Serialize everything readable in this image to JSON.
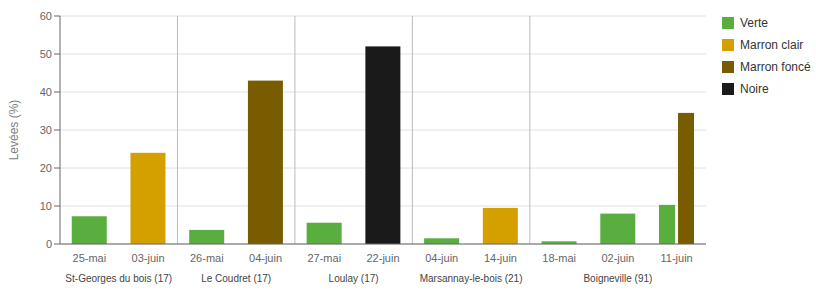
{
  "chart_data": {
    "type": "bar",
    "categories": [
      "25-mai",
      "03-juin",
      "26-mai",
      "04-juin",
      "27-mai",
      "22-juin",
      "04-juin",
      "14-juin",
      "18-mai",
      "02-juin",
      "11-juin"
    ],
    "series": [
      {
        "name": "Verte",
        "color": "#5aad3f",
        "values": [
          7.3,
          null,
          3.7,
          null,
          5.6,
          null,
          1.5,
          null,
          0.7,
          8.0,
          10.3
        ]
      },
      {
        "name": "Marron clair",
        "color": "#d4a000",
        "values": [
          null,
          24.0,
          null,
          null,
          null,
          null,
          null,
          9.5,
          null,
          null,
          null
        ]
      },
      {
        "name": "Marron foncé",
        "color": "#7a5c00",
        "values": [
          null,
          null,
          null,
          43.0,
          null,
          null,
          null,
          null,
          null,
          null,
          34.5
        ]
      },
      {
        "name": "Noire",
        "color": "#1a1a1a",
        "values": [
          null,
          null,
          null,
          null,
          null,
          52.0,
          null,
          null,
          null,
          null,
          null
        ]
      }
    ],
    "ylabel": "Levées (%)",
    "ylim": [
      0,
      60
    ],
    "yticks": [
      0,
      10,
      20,
      30,
      40,
      50,
      60
    ],
    "grid": true,
    "legend": "right",
    "annotations": [
      {
        "text": "St-Georges du bois (17)",
        "positions": [
          0,
          1
        ]
      },
      {
        "text": "Le Coudret (17)",
        "positions": [
          2,
          3
        ]
      },
      {
        "text": "Loulay (17)",
        "positions": [
          4,
          5
        ]
      },
      {
        "text": "Marsannay-le-bois (21)",
        "positions": [
          6,
          7
        ]
      },
      {
        "text": "Boigneville (91)",
        "positions": [
          8,
          9,
          10
        ]
      }
    ]
  }
}
